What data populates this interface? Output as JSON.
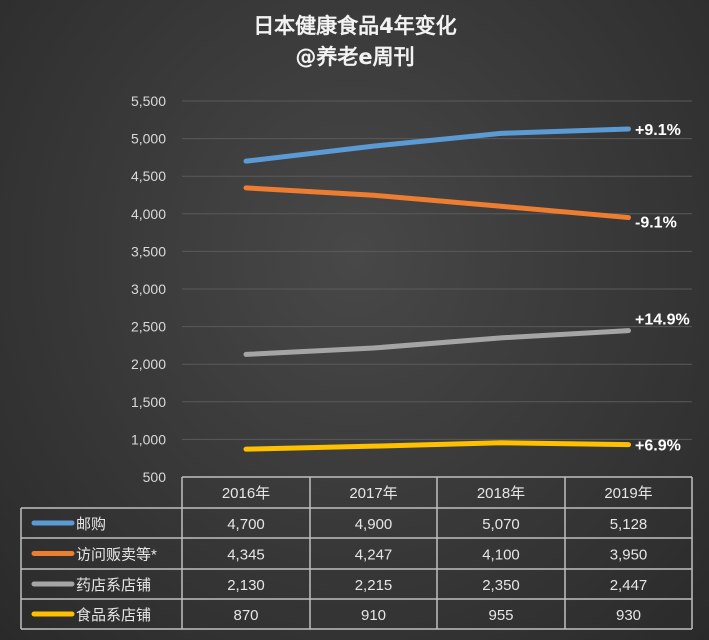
{
  "chart_data": {
    "type": "line",
    "title": "日本健康食品4年变化",
    "subtitle": "@养老e周刊",
    "categories": [
      "2016年",
      "2017年",
      "2018年",
      "2019年"
    ],
    "ylim": [
      500,
      5500
    ],
    "yticks": [
      500,
      1000,
      1500,
      2000,
      2500,
      3000,
      3500,
      4000,
      4500,
      5000,
      5500
    ],
    "ytick_labels": [
      "500",
      "1,000",
      "1,500",
      "2,000",
      "2,500",
      "3,000",
      "3,500",
      "4,000",
      "4,500",
      "5,000",
      "5,500"
    ],
    "grid": true,
    "legend": "data-table",
    "series": [
      {
        "name": "邮购",
        "color": "#5b9bd5",
        "values": [
          4700,
          4900,
          5070,
          5128
        ],
        "display": [
          "4,700",
          "4,900",
          "5,070",
          "5,128"
        ],
        "change_label": "+9.1%"
      },
      {
        "name": "访问贩卖等*",
        "color": "#ed7d31",
        "values": [
          4345,
          4247,
          4100,
          3950
        ],
        "display": [
          "4,345",
          "4,247",
          "4,100",
          "3,950"
        ],
        "change_label": "-9.1%"
      },
      {
        "name": "药店系店铺",
        "color": "#a5a5a5",
        "values": [
          2130,
          2215,
          2350,
          2447
        ],
        "display": [
          "2,130",
          "2,215",
          "2,350",
          "2,447"
        ],
        "change_label": "+14.9%"
      },
      {
        "name": "食品系店铺",
        "color": "#ffc000",
        "values": [
          870,
          910,
          955,
          930
        ],
        "display": [
          "870",
          "910",
          "955",
          "930"
        ],
        "change_label": "+6.9%"
      }
    ]
  }
}
